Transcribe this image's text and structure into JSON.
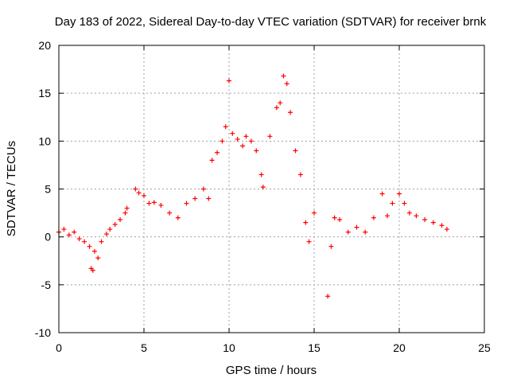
{
  "chart_data": {
    "type": "scatter",
    "title": "Day 183 of 2022, Sidereal Day-to-day VTEC variation (SDTVAR) for receiver brnk",
    "xlabel": "GPS time / hours",
    "ylabel": "SDTVAR / TECUs",
    "xlim": [
      0,
      25
    ],
    "ylim": [
      -10,
      20
    ],
    "xticks": [
      0,
      5,
      10,
      15,
      20,
      25
    ],
    "yticks": [
      -10,
      -5,
      0,
      5,
      10,
      15,
      20
    ],
    "xtick_labels": [
      "0",
      "5",
      "10",
      "15",
      "20",
      "25"
    ],
    "ytick_labels": [
      "-10",
      "-5",
      "0",
      "5",
      "10",
      "15",
      "20"
    ],
    "grid": true,
    "marker": "+",
    "color": "#ff0000",
    "series": [
      {
        "name": "SDTVAR",
        "x": [
          0.0,
          0.3,
          0.6,
          0.9,
          1.2,
          1.5,
          1.8,
          1.9,
          2.0,
          2.1,
          2.3,
          2.5,
          2.8,
          3.0,
          3.3,
          3.6,
          3.9,
          4.0,
          4.5,
          4.7,
          5.0,
          5.3,
          5.6,
          6.0,
          6.5,
          7.0,
          7.5,
          8.0,
          8.5,
          8.8,
          9.0,
          9.3,
          9.6,
          9.8,
          10.0,
          10.2,
          10.5,
          10.8,
          11.0,
          11.3,
          11.6,
          11.9,
          12.0,
          12.4,
          12.8,
          13.0,
          13.2,
          13.4,
          13.6,
          13.9,
          14.2,
          14.5,
          14.7,
          15.0,
          15.8,
          16.0,
          16.2,
          16.5,
          17.0,
          17.5,
          18.0,
          18.5,
          19.0,
          19.3,
          19.6,
          20.0,
          20.3,
          20.6,
          21.0,
          21.5,
          22.0,
          22.5,
          22.8
        ],
        "y": [
          0.5,
          0.8,
          0.2,
          0.5,
          -0.2,
          -0.5,
          -1.0,
          -3.3,
          -3.5,
          -1.5,
          -2.2,
          -0.5,
          0.3,
          0.8,
          1.3,
          1.8,
          2.5,
          3.0,
          5.0,
          4.6,
          4.3,
          3.5,
          3.6,
          3.3,
          2.5,
          2.0,
          3.5,
          4.0,
          5.0,
          4.0,
          8.0,
          8.8,
          10.0,
          11.5,
          16.3,
          10.8,
          10.2,
          9.5,
          10.5,
          10.0,
          9.0,
          6.5,
          5.2,
          10.5,
          13.5,
          14.0,
          16.8,
          16.0,
          13.0,
          9.0,
          6.5,
          1.5,
          -0.5,
          2.5,
          -6.2,
          -1.0,
          2.0,
          1.8,
          0.5,
          1.0,
          0.5,
          2.0,
          4.5,
          2.2,
          3.5,
          4.5,
          3.5,
          2.5,
          2.2,
          1.8,
          1.5,
          1.2,
          0.8
        ]
      }
    ]
  }
}
